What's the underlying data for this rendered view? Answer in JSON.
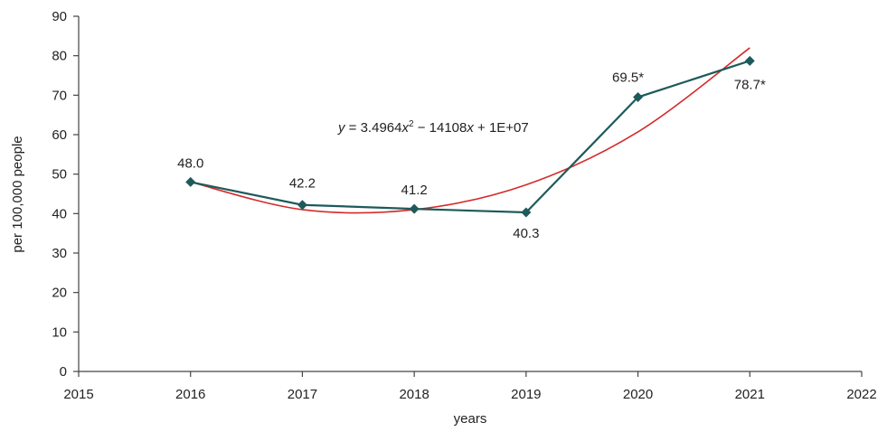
{
  "chart_data": {
    "type": "line",
    "xlabel": "years",
    "ylabel": "per 100,000 people",
    "xlim": [
      2015,
      2022
    ],
    "ylim": [
      0,
      90
    ],
    "x_ticks": [
      "2015",
      "2016",
      "2017",
      "2018",
      "2019",
      "2020",
      "2021",
      "2022"
    ],
    "y_ticks": [
      "0",
      "10",
      "20",
      "30",
      "40",
      "50",
      "60",
      "70",
      "80",
      "90"
    ],
    "grid": false,
    "series": [
      {
        "color": "#1e5a5a",
        "marker": "diamond",
        "x": [
          2016,
          2017,
          2018,
          2019,
          2020,
          2021
        ],
        "y": [
          48.0,
          42.2,
          41.2,
          40.3,
          69.5,
          78.7
        ],
        "labels": [
          "48.0",
          "42.2",
          "41.2",
          "40.3",
          "69.5*",
          "78.7*"
        ]
      }
    ],
    "trendline": {
      "color": "#d42a2a",
      "type": "polynomial",
      "x": [
        2016,
        2017,
        2018,
        2019,
        2020,
        2021
      ],
      "y": [
        48.0,
        41.0,
        41.0,
        47.3,
        60.7,
        82.0
      ]
    },
    "annotations": {
      "equation": {
        "y_var": "y",
        "eq": " = 3.4964",
        "x1": "x",
        "sup": "2",
        "mid": " − 14108",
        "x2": "x",
        "tail": " + 1E+07"
      }
    }
  }
}
